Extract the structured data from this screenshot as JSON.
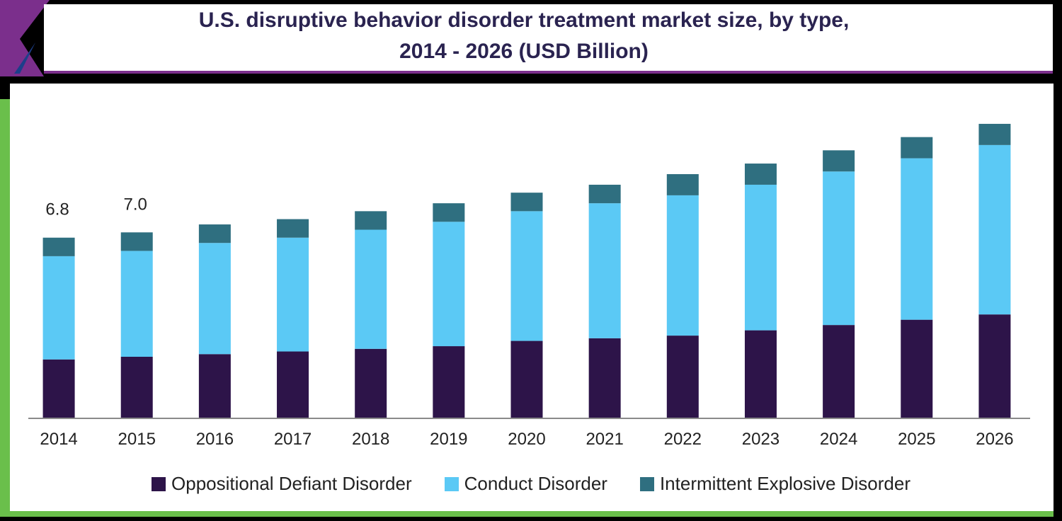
{
  "title_line1": "U.S. disruptive behavior disorder treatment market size, by type,",
  "title_line2": "2014 - 2026 (USD Billion)",
  "colors": {
    "oppositional": "#2d1449",
    "conduct": "#5bc9f5",
    "intermittent": "#2f6f80",
    "frame_accent_purple": "#7b2f8c",
    "frame_accent_green": "#6abf4b"
  },
  "legend": [
    {
      "label": "Oppositional Defiant Disorder",
      "color": "#2d1449"
    },
    {
      "label": "Conduct Disorder",
      "color": "#5bc9f5"
    },
    {
      "label": "Intermittent Explosive Disorder",
      "color": "#2f6f80"
    }
  ],
  "chart_data": {
    "type": "bar",
    "stacked": true,
    "title": "U.S. disruptive behavior disorder treatment market size, by type, 2014 - 2026 (USD Billion)",
    "categories": [
      "2014",
      "2015",
      "2016",
      "2017",
      "2018",
      "2019",
      "2020",
      "2021",
      "2022",
      "2023",
      "2024",
      "2025",
      "2026"
    ],
    "series": [
      {
        "name": "Oppositional Defiant Disorder",
        "values": [
          2.2,
          2.3,
          2.4,
          2.5,
          2.6,
          2.7,
          2.9,
          3.0,
          3.1,
          3.3,
          3.5,
          3.7,
          3.9
        ]
      },
      {
        "name": "Conduct Disorder",
        "values": [
          3.9,
          4.0,
          4.2,
          4.3,
          4.5,
          4.7,
          4.9,
          5.1,
          5.3,
          5.5,
          5.8,
          6.1,
          6.4
        ]
      },
      {
        "name": "Intermittent Explosive Disorder",
        "values": [
          0.7,
          0.7,
          0.7,
          0.7,
          0.7,
          0.7,
          0.7,
          0.7,
          0.8,
          0.8,
          0.8,
          0.8,
          0.8
        ]
      }
    ],
    "data_labels": [
      {
        "category": "2014",
        "text": "6.8"
      },
      {
        "category": "2015",
        "text": "7.0"
      }
    ],
    "ylim": [
      0,
      11.5
    ],
    "grid": false,
    "legend_position": "bottom"
  }
}
